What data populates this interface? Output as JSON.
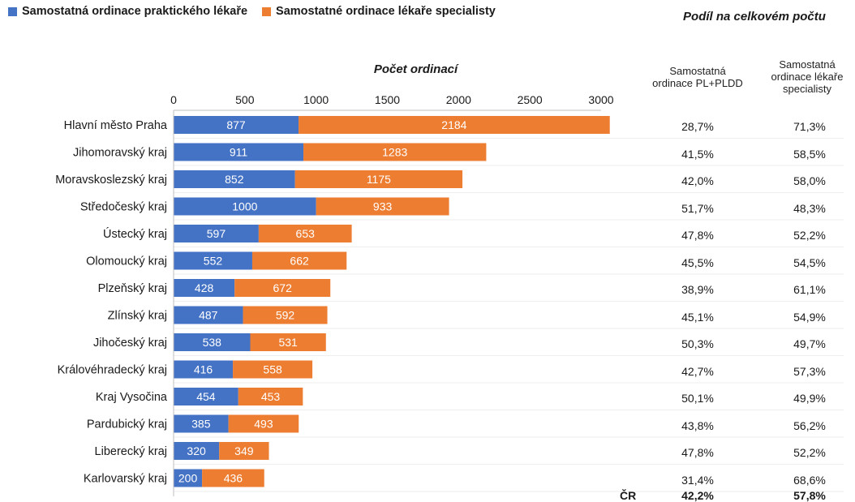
{
  "legend": {
    "pl_label": "Samostatná ordinace praktického lékaře",
    "spec_label": "Samostatné ordinace lékaře specialisty"
  },
  "colors": {
    "pl": "#4472c4",
    "spec": "#ed7d31"
  },
  "share_title": "Podíl na celkovém počtu",
  "share_columns": {
    "pl": "Samostatná ordinace PL+PLDD",
    "spec": "Samostatná ordinace lékaře specialisty"
  },
  "total": {
    "label": "ČR",
    "pl": "42,2%",
    "spec": "57,8%"
  },
  "chart_data": {
    "type": "bar",
    "orientation": "horizontal",
    "stacked": true,
    "title": "Počet ordinací",
    "xlim": [
      0,
      3000
    ],
    "ticks": [
      0,
      500,
      1000,
      1500,
      2000,
      2500,
      3000
    ],
    "categories": [
      "Hlavní město Praha",
      "Jihomoravský kraj",
      "Moravskoslezský kraj",
      "Středočeský kraj",
      "Ústecký kraj",
      "Olomoucký kraj",
      "Plzeňský kraj",
      "Zlínský kraj",
      "Jihočeský kraj",
      "Královéhradecký kraj",
      "Kraj Vysočina",
      "Pardubický kraj",
      "Liberecký kraj",
      "Karlovarský kraj"
    ],
    "series": [
      {
        "name": "Samostatná ordinace praktického lékaře",
        "values": [
          877,
          911,
          852,
          1000,
          597,
          552,
          428,
          487,
          538,
          416,
          454,
          385,
          320,
          200
        ]
      },
      {
        "name": "Samostatné ordinace lékaře specialisty",
        "values": [
          2184,
          1283,
          1175,
          933,
          653,
          662,
          672,
          592,
          531,
          558,
          453,
          493,
          349,
          436
        ]
      }
    ],
    "shares": {
      "pl": [
        "28,7%",
        "41,5%",
        "42,0%",
        "51,7%",
        "47,8%",
        "45,5%",
        "38,9%",
        "45,1%",
        "50,3%",
        "42,7%",
        "50,1%",
        "43,8%",
        "47,8%",
        "31,4%"
      ],
      "spec": [
        "71,3%",
        "58,5%",
        "58,0%",
        "48,3%",
        "52,2%",
        "54,5%",
        "61,1%",
        "54,9%",
        "49,7%",
        "57,3%",
        "49,9%",
        "56,2%",
        "52,2%",
        "68,6%"
      ]
    }
  }
}
